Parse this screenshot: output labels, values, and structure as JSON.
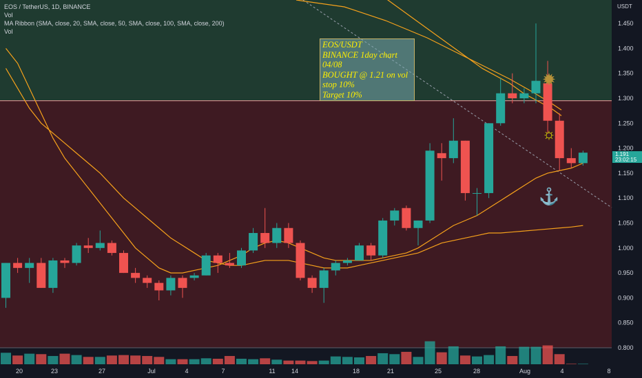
{
  "legend": {
    "symbol_line": "EOS / TetherUS, 1D, BINANCE",
    "vol_line_1": "Vol",
    "ma_line": "MA Ribbon (SMA, close, 20, SMA, close, 50, SMA, close, 100, SMA, close, 200)",
    "vol_line_2": "Vol"
  },
  "note": {
    "line1": "EOS/USDT",
    "line2": "BINANCE 1day chart",
    "line3": "04/08",
    "line4": "BOUGHT @ 1.21 on vol",
    "line5": "stop 10%",
    "line6": "Target 10%"
  },
  "price_axis": {
    "currency": "USDT",
    "last_price": "1.191",
    "countdown": "23:02:15"
  },
  "colors": {
    "up": "#26a69a",
    "down": "#ef5350",
    "ma": "#f7a21b",
    "upper_zone": "#1f3b30",
    "lower_zone": "#3e1a22"
  },
  "chart_data": {
    "type": "candlestick",
    "title": "EOS / TetherUS, 1D, BINANCE",
    "ylim": [
      0.78,
      1.52
    ],
    "y_ticks": [
      0.8,
      0.85,
      0.9,
      0.95,
      1.0,
      1.05,
      1.1,
      1.15,
      1.2,
      1.25,
      1.3,
      1.35,
      1.4,
      1.45
    ],
    "x_ticks": [
      "20",
      "23",
      "27",
      "Jul",
      "4",
      "7",
      "11",
      "14",
      "18",
      "21",
      "25",
      "28",
      "Aug",
      "4",
      "8"
    ],
    "resistance_level": 1.295,
    "candles": [
      {
        "o": 0.9,
        "h": 0.97,
        "l": 0.88,
        "c": 0.97,
        "v": 0.125
      },
      {
        "o": 0.97,
        "h": 0.98,
        "l": 0.95,
        "c": 0.96,
        "v": 0.095
      },
      {
        "o": 0.96,
        "h": 0.98,
        "l": 0.93,
        "c": 0.97,
        "v": 0.115
      },
      {
        "o": 0.97,
        "h": 0.98,
        "l": 0.92,
        "c": 0.92,
        "v": 0.11
      },
      {
        "o": 0.92,
        "h": 0.98,
        "l": 0.91,
        "c": 0.975,
        "v": 0.09
      },
      {
        "o": 0.975,
        "h": 0.98,
        "l": 0.96,
        "c": 0.97,
        "v": 0.115
      },
      {
        "o": 0.97,
        "h": 1.01,
        "l": 0.965,
        "c": 1.005,
        "v": 0.1
      },
      {
        "o": 1.005,
        "h": 1.02,
        "l": 0.99,
        "c": 1.0,
        "v": 0.08
      },
      {
        "o": 1.0,
        "h": 1.035,
        "l": 0.995,
        "c": 1.01,
        "v": 0.08
      },
      {
        "o": 1.01,
        "h": 1.015,
        "l": 0.985,
        "c": 0.99,
        "v": 0.095
      },
      {
        "o": 0.99,
        "h": 0.995,
        "l": 0.95,
        "c": 0.95,
        "v": 0.1
      },
      {
        "o": 0.95,
        "h": 0.96,
        "l": 0.93,
        "c": 0.94,
        "v": 0.095
      },
      {
        "o": 0.94,
        "h": 0.945,
        "l": 0.92,
        "c": 0.93,
        "v": 0.09
      },
      {
        "o": 0.93,
        "h": 0.935,
        "l": 0.895,
        "c": 0.915,
        "v": 0.08
      },
      {
        "o": 0.915,
        "h": 0.945,
        "l": 0.905,
        "c": 0.94,
        "v": 0.055
      },
      {
        "o": 0.94,
        "h": 0.945,
        "l": 0.9,
        "c": 0.92,
        "v": 0.055
      },
      {
        "o": 0.94,
        "h": 0.95,
        "l": 0.935,
        "c": 0.945,
        "v": 0.055
      },
      {
        "o": 0.945,
        "h": 0.99,
        "l": 0.945,
        "c": 0.985,
        "v": 0.065
      },
      {
        "o": 0.985,
        "h": 0.99,
        "l": 0.95,
        "c": 0.97,
        "v": 0.06
      },
      {
        "o": 0.97,
        "h": 0.99,
        "l": 0.96,
        "c": 0.965,
        "v": 0.09
      },
      {
        "o": 0.965,
        "h": 1.0,
        "l": 0.96,
        "c": 0.995,
        "v": 0.06
      },
      {
        "o": 0.995,
        "h": 1.04,
        "l": 0.99,
        "c": 1.03,
        "v": 0.055
      },
      {
        "o": 1.03,
        "h": 1.08,
        "l": 1.0,
        "c": 1.01,
        "v": 0.065
      },
      {
        "o": 1.01,
        "h": 1.05,
        "l": 1.0,
        "c": 1.04,
        "v": 0.05
      },
      {
        "o": 1.04,
        "h": 1.05,
        "l": 1.0,
        "c": 1.01,
        "v": 0.04
      },
      {
        "o": 1.01,
        "h": 1.015,
        "l": 0.935,
        "c": 0.94,
        "v": 0.04
      },
      {
        "o": 0.94,
        "h": 0.945,
        "l": 0.91,
        "c": 0.92,
        "v": 0.035
      },
      {
        "o": 0.92,
        "h": 0.96,
        "l": 0.89,
        "c": 0.955,
        "v": 0.04
      },
      {
        "o": 0.955,
        "h": 0.975,
        "l": 0.945,
        "c": 0.97,
        "v": 0.085
      },
      {
        "o": 0.97,
        "h": 0.98,
        "l": 0.965,
        "c": 0.975,
        "v": 0.08
      },
      {
        "o": 0.975,
        "h": 1.01,
        "l": 0.975,
        "c": 1.005,
        "v": 0.075
      },
      {
        "o": 1.005,
        "h": 1.01,
        "l": 0.975,
        "c": 0.985,
        "v": 0.09
      },
      {
        "o": 0.985,
        "h": 1.06,
        "l": 0.98,
        "c": 1.055,
        "v": 0.12
      },
      {
        "o": 1.055,
        "h": 1.08,
        "l": 1.045,
        "c": 1.075,
        "v": 0.11
      },
      {
        "o": 1.08,
        "h": 1.085,
        "l": 1.035,
        "c": 1.04,
        "v": 0.135
      },
      {
        "o": 1.04,
        "h": 1.055,
        "l": 1.005,
        "c": 1.055,
        "v": 0.08
      },
      {
        "o": 1.055,
        "h": 1.21,
        "l": 1.05,
        "c": 1.195,
        "v": 0.25
      },
      {
        "o": 1.19,
        "h": 1.21,
        "l": 1.135,
        "c": 1.18,
        "v": 0.13
      },
      {
        "o": 1.18,
        "h": 1.26,
        "l": 1.17,
        "c": 1.215,
        "v": 0.195
      },
      {
        "o": 1.215,
        "h": 1.215,
        "l": 1.095,
        "c": 1.11,
        "v": 0.095
      },
      {
        "o": 1.11,
        "h": 1.12,
        "l": 1.065,
        "c": 1.11,
        "v": 0.085
      },
      {
        "o": 1.11,
        "h": 1.25,
        "l": 1.1,
        "c": 1.25,
        "v": 0.1
      },
      {
        "o": 1.25,
        "h": 1.34,
        "l": 1.245,
        "c": 1.31,
        "v": 0.195
      },
      {
        "o": 1.31,
        "h": 1.35,
        "l": 1.29,
        "c": 1.3,
        "v": 0.09
      },
      {
        "o": 1.3,
        "h": 1.32,
        "l": 1.29,
        "c": 1.31,
        "v": 0.19
      },
      {
        "o": 1.31,
        "h": 1.45,
        "l": 1.29,
        "c": 1.335,
        "v": 0.19
      },
      {
        "o": 1.33,
        "h": 1.375,
        "l": 1.23,
        "c": 1.255,
        "v": 0.205
      },
      {
        "o": 1.255,
        "h": 1.27,
        "l": 1.155,
        "c": 1.18,
        "v": 0.11
      },
      {
        "o": 1.18,
        "h": 1.2,
        "l": 1.16,
        "c": 1.17,
        "v": 0.005
      },
      {
        "o": 1.17,
        "h": 1.195,
        "l": 1.165,
        "c": 1.191,
        "v": 0.005
      }
    ],
    "ma_fast": [
      1.4,
      1.37,
      1.32,
      1.27,
      1.22,
      1.18,
      1.15,
      1.12,
      1.09,
      1.06,
      1.03,
      1.0,
      0.98,
      0.96,
      0.95,
      0.95,
      0.955,
      0.96,
      0.965,
      0.975,
      0.985,
      1.0,
      1.01,
      1.015,
      1.01,
      1.0,
      0.99,
      0.98,
      0.975,
      0.975,
      0.975,
      0.975,
      0.98,
      0.985,
      0.99,
      1.0,
      1.015,
      1.03,
      1.045,
      1.055,
      1.065,
      1.08,
      1.095,
      1.11,
      1.125,
      1.14,
      1.15,
      1.155,
      1.16,
      1.17
    ],
    "ma_mid": [
      1.36,
      1.32,
      1.28,
      1.25,
      1.23,
      1.21,
      1.19,
      1.17,
      1.15,
      1.125,
      1.1,
      1.08,
      1.06,
      1.04,
      1.02,
      1.005,
      0.99,
      0.975,
      0.97,
      0.965,
      0.965,
      0.97,
      0.975,
      0.975,
      0.975,
      0.97,
      0.965,
      0.96,
      0.96,
      0.96,
      0.965,
      0.97,
      0.975,
      0.98,
      0.985,
      0.99,
      1.0,
      1.01,
      1.015,
      1.02,
      1.025,
      1.03,
      1.03,
      1.032,
      1.034,
      1.036,
      1.038,
      1.04,
      1.042,
      1.045
    ],
    "ma_slow_tail": [
      1.52,
      1.5,
      1.48,
      1.46,
      1.44,
      1.42,
      1.4,
      1.38,
      1.36,
      1.35,
      1.34,
      1.33,
      1.32,
      1.31,
      1.3,
      1.29,
      1.285,
      1.28,
      1.27,
      1.265
    ]
  }
}
